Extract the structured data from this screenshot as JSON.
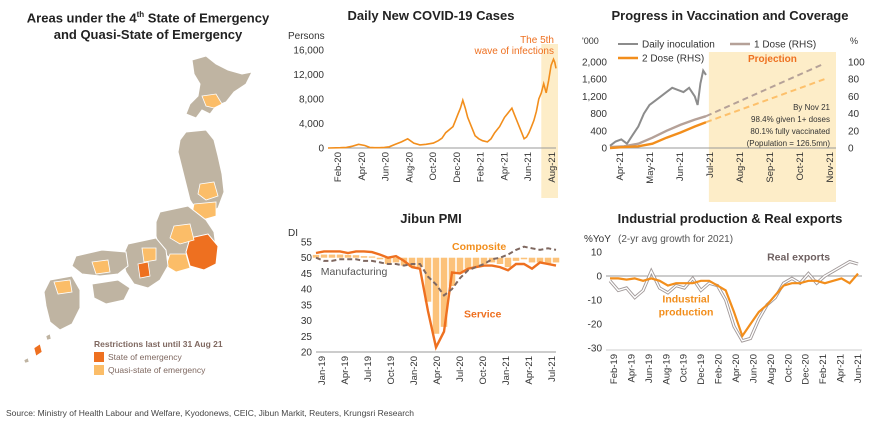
{
  "source": "Source: Ministry of Health Labour and Welfare, Kyodonews, CEIC, Jibun Markit, Reuters, Krungsri Research",
  "colors": {
    "orange": "#f28e1c",
    "dark_orange": "#ee7020",
    "light_orange": "#fdb55a",
    "gray": "#8c8c8c",
    "brown": "#7f6860",
    "highlight": "#fdedc8",
    "map_gray": "#bfb4a2",
    "map_dark": "#f17b2a",
    "map_light": "#fbbd68"
  },
  "map": {
    "title_line1": "Areas under the 4",
    "title_sup": "th",
    "title_line1_end": " State of Emergency",
    "title_line2": "and Quasi-State of Emergency",
    "legend_title": "Restrictions last until 31 Aug 21",
    "legend": [
      {
        "label": "State of emergency",
        "color": "#ee7020"
      },
      {
        "label": "Quasi-state of emergency",
        "color": "#fbbd68"
      }
    ]
  },
  "chart_data": [
    {
      "id": "cases",
      "type": "line",
      "title": "Daily New COVID-19 Cases",
      "ylabel": "Persons",
      "ylim": [
        0,
        16000
      ],
      "yticks": [
        "0",
        "4,000",
        "8,000",
        "12,000",
        "16,000"
      ],
      "yvals": [
        0,
        4000,
        8000,
        12000,
        16000
      ],
      "xlabels": [
        "Feb-20",
        "Apr-20",
        "Jun-20",
        "Aug-20",
        "Oct-20",
        "Dec-20",
        "Feb-21",
        "Apr-21",
        "Jun-21",
        "Aug-21"
      ],
      "annotation": "The 5th wave of infections",
      "series": [
        {
          "x": [
            0,
            1,
            1.5,
            2,
            2.5,
            3,
            3.4,
            3.8,
            4.2,
            4.6,
            5,
            5.5,
            6,
            6.5,
            7,
            7.5,
            8,
            8.6,
            9,
            9.3,
            9.6,
            9.9,
            10.2,
            10.4,
            10.6,
            10.8,
            11,
            11.2,
            11.4,
            11.8,
            12,
            12.3,
            12.6,
            13,
            13.3,
            13.6,
            14,
            14.4,
            14.8,
            15,
            15.2,
            15.5,
            15.8,
            16,
            16.2,
            16.4,
            16.6,
            16.8,
            17,
            17.2,
            17.4,
            17.6,
            17.8,
            18,
            18.2,
            18.4,
            18.5,
            18.6
          ],
          "y": [
            0,
            50,
            100,
            300,
            600,
            400,
            100,
            50,
            50,
            100,
            200,
            600,
            1000,
            1500,
            800,
            500,
            600,
            800,
            1200,
            1600,
            2500,
            3000,
            3500,
            4500,
            5500,
            6500,
            7800,
            6500,
            5000,
            3000,
            2000,
            1500,
            1200,
            1000,
            1500,
            2500,
            3500,
            5000,
            6000,
            6500,
            5500,
            4000,
            2500,
            1500,
            1800,
            2500,
            3500,
            4500,
            6000,
            8000,
            9000,
            10500,
            9000,
            11000,
            13500,
            14500,
            14000,
            13000
          ]
        }
      ],
      "highlight_from": 17.4
    },
    {
      "id": "vacc",
      "type": "line",
      "title": "Progress in Vaccination and Coverage",
      "yunit_left": "'000",
      "yunit_right": "%",
      "ylim_left": [
        0,
        2000
      ],
      "yticks_left": [
        "0",
        "400",
        "800",
        "1,200",
        "1,600",
        "2,000"
      ],
      "yvals_left": [
        0,
        400,
        800,
        1200,
        1600,
        2000
      ],
      "ylim_right": [
        0,
        100
      ],
      "yticks_right": [
        "0",
        "20",
        "40",
        "60",
        "80",
        "100"
      ],
      "yvals_right": [
        0,
        20,
        40,
        60,
        80,
        100
      ],
      "xlabels": [
        "Apr-21",
        "May-21",
        "Jun-21",
        "Jul-21",
        "Aug-21",
        "Sep-21",
        "Oct-21",
        "Nov-21"
      ],
      "legend": [
        "Daily inoculation",
        "1 Dose (RHS)",
        "2 Dose (RHS)"
      ],
      "projection_label": "Projection",
      "notes": [
        "By Nov 21",
        "98.4%  given 1+ doses",
        "80.1% fully vaccinated",
        "(Population = 126.5mn)"
      ],
      "series": [
        {
          "name": "Daily inoculation",
          "axis": "left",
          "x": [
            0,
            0.2,
            0.4,
            0.6,
            0.8,
            1.0,
            1.2,
            1.4,
            1.6,
            1.8,
            2.0,
            2.2,
            2.4,
            2.6,
            2.8,
            3.0,
            3.1,
            3.2,
            3.3,
            3.4
          ],
          "y": [
            50,
            150,
            200,
            100,
            300,
            500,
            800,
            1000,
            1100,
            1200,
            1300,
            1400,
            1350,
            1300,
            1400,
            1200,
            1000,
            1500,
            1800,
            1700
          ]
        },
        {
          "name": "1 Dose (RHS)",
          "axis": "right",
          "x": [
            0,
            0.5,
            1,
            1.5,
            2,
            2.5,
            3,
            3.4
          ],
          "y": [
            1,
            2,
            5,
            12,
            20,
            27,
            33,
            37
          ]
        },
        {
          "name": "2 Dose (RHS)",
          "axis": "right",
          "x": [
            0,
            0.5,
            1,
            1.5,
            2,
            2.5,
            3,
            3.4
          ],
          "y": [
            0,
            1,
            2,
            5,
            12,
            18,
            25,
            30
          ]
        },
        {
          "name": "1 Dose projection",
          "axis": "right",
          "x": [
            3.4,
            7.6
          ],
          "y": [
            37,
            98.4
          ]
        },
        {
          "name": "2 Dose projection",
          "axis": "right",
          "x": [
            3.4,
            7.6
          ],
          "y": [
            30,
            80.1
          ]
        }
      ],
      "highlight_from": 3.5
    },
    {
      "id": "pmi",
      "type": "line",
      "title": "Jibun PMI",
      "ylabel": "DI",
      "ylim": [
        20,
        55
      ],
      "yticks": [
        "20",
        "25",
        "30",
        "35",
        "40",
        "45",
        "50",
        "55"
      ],
      "yvals": [
        20,
        25,
        30,
        35,
        40,
        45,
        50,
        55
      ],
      "xlabels": [
        "Jan-19",
        "Apr-19",
        "Jul-19",
        "Oct-19",
        "Jan-20",
        "Apr-20",
        "Jul-20",
        "Oct-20",
        "Jan-21",
        "Apr-21",
        "Jul-21"
      ],
      "labels": {
        "composite": "Composite",
        "manufacturing": "Manufacturing",
        "service": "Service"
      },
      "series": [
        {
          "name": "Service",
          "x": [
            0,
            1,
            2,
            3,
            4,
            5,
            6,
            7,
            8,
            9,
            10,
            11,
            12,
            13,
            14,
            15,
            16,
            17,
            18,
            19,
            20,
            21,
            22,
            23,
            24,
            25,
            26,
            27,
            28,
            29,
            30
          ],
          "y": [
            51.5,
            52,
            52,
            52,
            51.5,
            52,
            52,
            51.8,
            51,
            50,
            50.5,
            49,
            47,
            46.5,
            33,
            21.5,
            26.5,
            45.3,
            45,
            46.5,
            47,
            47.5,
            47.5,
            47,
            46,
            48,
            48,
            46.5,
            48.5,
            48,
            47.5
          ]
        },
        {
          "name": "Manufacturing",
          "x": [
            0,
            1,
            2,
            3,
            4,
            5,
            6,
            7,
            8,
            9,
            10,
            11,
            12,
            13,
            14,
            15,
            16,
            17,
            18,
            19,
            20,
            21,
            22,
            23,
            24,
            25,
            26,
            27,
            28,
            29,
            30
          ],
          "y": [
            50,
            49,
            49,
            49.5,
            49.5,
            49.5,
            49,
            49,
            48.5,
            48,
            48,
            47.5,
            48,
            48,
            44,
            41.5,
            38,
            40,
            43.5,
            46,
            47,
            48,
            49.5,
            50,
            51,
            52.5,
            53.5,
            53,
            52.5,
            53,
            52.5
          ]
        },
        {
          "name": "Composite",
          "x": [
            0,
            1,
            2,
            3,
            4,
            5,
            6,
            7,
            8,
            9,
            10,
            11,
            12,
            13,
            14,
            15,
            16,
            17,
            18,
            19,
            20,
            21,
            22,
            23,
            24,
            25,
            26,
            27,
            28,
            29,
            30
          ],
          "y": [
            50.9,
            51,
            51,
            51,
            50.9,
            50.8,
            50.5,
            50.4,
            49.5,
            48,
            48.5,
            47.5,
            47,
            47,
            36,
            25.8,
            28,
            41,
            45,
            46.5,
            47,
            48,
            48.5,
            48,
            47,
            49,
            49.5,
            48.5,
            48.5,
            48,
            48.5
          ]
        }
      ]
    },
    {
      "id": "ip",
      "type": "line",
      "title": "Industrial production & Real exports",
      "ylabel": "%YoY",
      "ylabel_note": "(2-yr avg growth for 2021)",
      "ylim": [
        -30,
        10
      ],
      "yticks": [
        "-30",
        "-20",
        "-10",
        "0",
        "10"
      ],
      "yvals": [
        -30,
        -20,
        -10,
        0,
        10
      ],
      "xlabels": [
        "Feb-19",
        "Apr-19",
        "Jun-19",
        "Aug-19",
        "Oct-19",
        "Dec-19",
        "Feb-20",
        "Apr-20",
        "Jun-20",
        "Aug-20",
        "Oct-20",
        "Dec-20",
        "Feb-21",
        "Apr-21",
        "Jun-21"
      ],
      "labels": {
        "exports": "Real exports",
        "ip": "Industrial production"
      },
      "series": [
        {
          "name": "Real exports",
          "x": [
            0,
            1,
            2,
            3,
            4,
            5,
            6,
            7,
            8,
            9,
            10,
            11,
            12,
            13,
            14,
            15,
            16,
            17,
            18,
            19,
            20,
            21,
            22,
            23,
            24,
            25,
            26,
            27,
            28,
            29,
            30
          ],
          "y": [
            -2,
            -6,
            -5,
            -9,
            -6,
            2,
            -5,
            -7,
            -4,
            -5,
            -1,
            -6,
            -3,
            -4,
            -10,
            -21,
            -27,
            -26,
            -18,
            -12,
            -9,
            -3,
            -1,
            -3,
            1,
            -3,
            0,
            2,
            4,
            6,
            5
          ]
        },
        {
          "name": "Industrial production",
          "x": [
            0,
            1,
            2,
            3,
            4,
            5,
            6,
            7,
            8,
            9,
            10,
            11,
            12,
            13,
            14,
            15,
            16,
            17,
            18,
            19,
            20,
            21,
            22,
            23,
            24,
            25,
            26,
            27,
            28,
            29,
            30
          ],
          "y": [
            -1,
            -1,
            -1.5,
            -1,
            -2,
            -1,
            -2,
            -4,
            -3,
            -3,
            -3,
            -2,
            -2,
            -4,
            -6,
            -15,
            -25,
            -20,
            -15,
            -12,
            -8,
            -4,
            -3,
            -3,
            -2,
            -2,
            -3,
            -2,
            -1,
            -3,
            1
          ]
        }
      ]
    }
  ]
}
